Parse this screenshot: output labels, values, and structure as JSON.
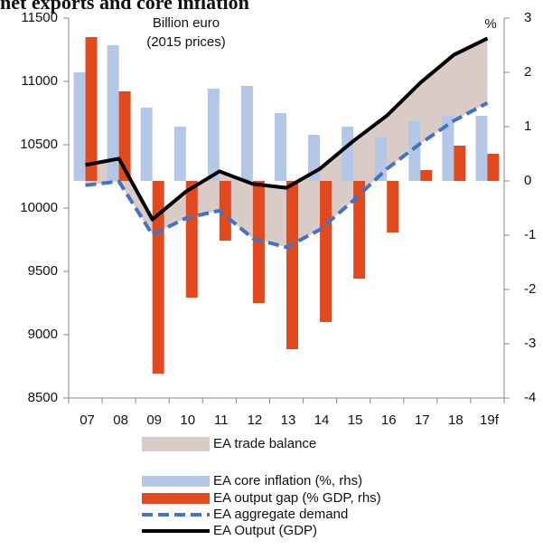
{
  "chart_data": {
    "type": "combo",
    "title": "net exports and core inflation",
    "annotations": [
      "Billion euro",
      "(2015 prices)",
      "%"
    ],
    "categories": [
      "07",
      "08",
      "09",
      "10",
      "11",
      "12",
      "13",
      "14",
      "15",
      "16",
      "17",
      "18",
      "19f"
    ],
    "series": [
      {
        "name": "EA trade balance",
        "color": "#d9cbc5",
        "kind": "band"
      },
      {
        "name": "EA core inflation (%, rhs)",
        "color": "#b4c7e7",
        "kind": "bar",
        "axis": "y2",
        "values": [
          2.0,
          2.5,
          1.35,
          1.0,
          1.7,
          1.75,
          1.25,
          0.85,
          1.0,
          0.8,
          1.1,
          1.2,
          1.2
        ]
      },
      {
        "name": "EA output gap (% GDP, rhs)",
        "color": "#e2491e",
        "kind": "bar",
        "axis": "y2",
        "values": [
          2.65,
          1.65,
          -3.55,
          -2.15,
          -1.1,
          -2.25,
          -3.1,
          -2.6,
          -1.8,
          -0.95,
          0.2,
          0.65,
          0.5
        ]
      },
      {
        "name": "EA aggregate demand",
        "color": "#4472c4",
        "kind": "dashed-line",
        "values": [
          10180,
          10210,
          9790,
          9920,
          9980,
          9760,
          9690,
          9830,
          10060,
          10310,
          10510,
          10690,
          10830
        ]
      },
      {
        "name": "EA Output (GDP)",
        "color": "#000000",
        "kind": "line",
        "values": [
          10340,
          10390,
          9910,
          10130,
          10290,
          10190,
          10160,
          10310,
          10530,
          10730,
          10990,
          11210,
          11340
        ]
      }
    ],
    "ylim": [
      8500,
      11500
    ],
    "yticks": [
      8500,
      9000,
      9500,
      10000,
      10500,
      11000,
      11500
    ],
    "y2lim": [
      -4,
      3
    ],
    "y2ticks": [
      -4,
      -3,
      -2,
      -1,
      0,
      1,
      2,
      3
    ],
    "grid": false
  }
}
